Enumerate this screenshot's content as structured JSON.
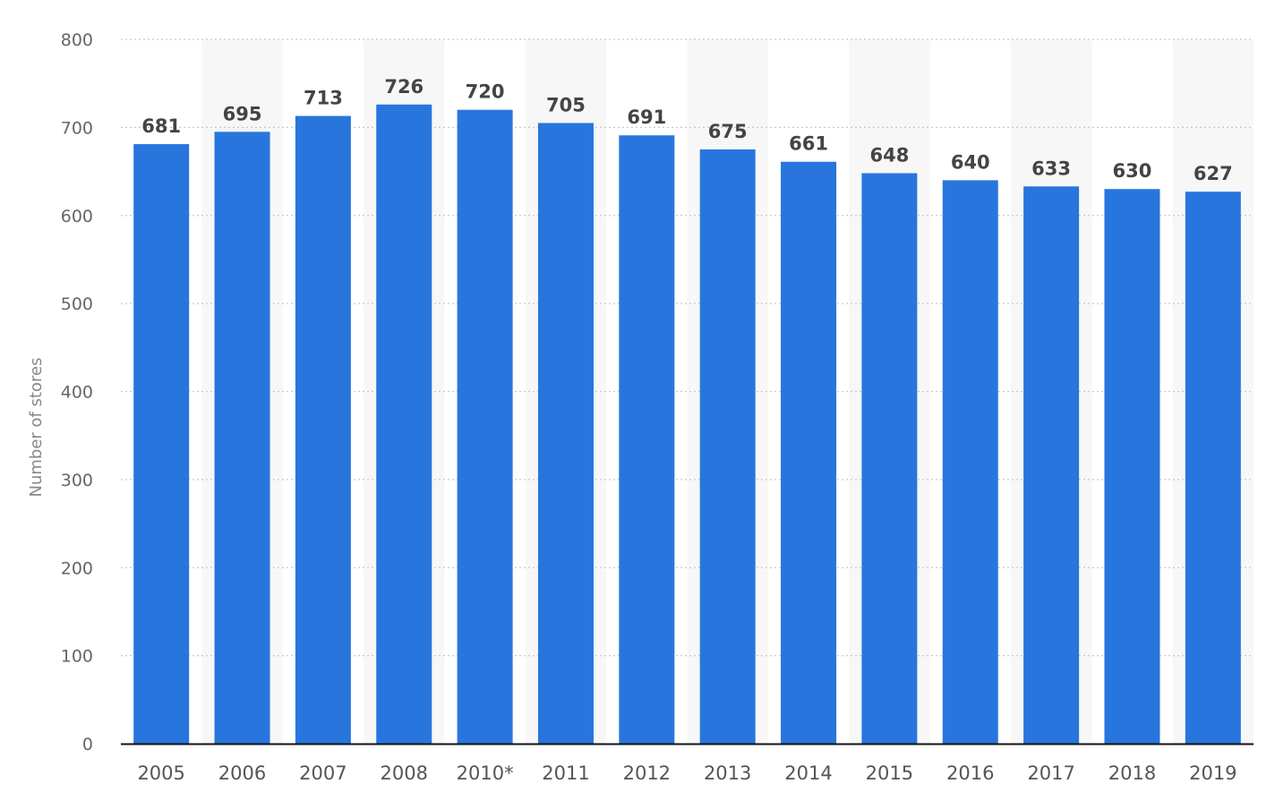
{
  "chart_data": {
    "type": "bar",
    "title": "",
    "xlabel": "",
    "ylabel": "Number of stores",
    "categories": [
      "2005",
      "2006",
      "2007",
      "2008",
      "2010*",
      "2011",
      "2012",
      "2013",
      "2014",
      "2015",
      "2016",
      "2017",
      "2018",
      "2019"
    ],
    "values": [
      681,
      695,
      713,
      726,
      720,
      705,
      691,
      675,
      661,
      648,
      640,
      633,
      630,
      627
    ],
    "ylim": [
      0,
      800
    ],
    "yticks": [
      "0",
      "100",
      "200",
      "300",
      "400",
      "500",
      "600",
      "700",
      "800"
    ],
    "grid": true,
    "legend": "none",
    "bar_color": "#2876dd",
    "stripe_color": "#f7f7f7",
    "grid_color": "#c8c8c8",
    "baseline_color": "#111111"
  }
}
